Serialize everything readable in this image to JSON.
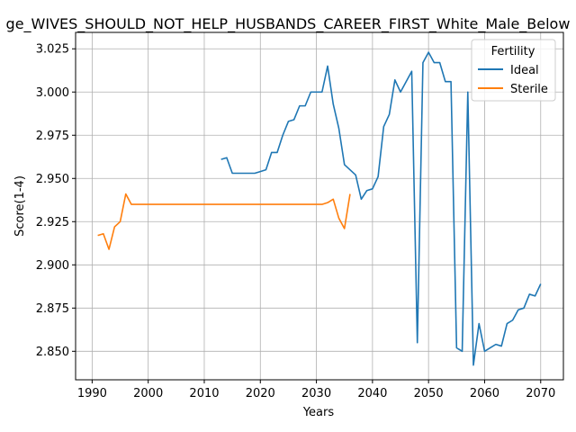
{
  "chart_data": {
    "type": "line",
    "title": "ge_WIVES_SHOULD_NOT_HELP_HUSBANDS_CAREER_FIRST_White_Male_Below",
    "xlabel": "Years",
    "ylabel": "Score(1-4)",
    "xlim": [
      1987.05,
      2074.05
    ],
    "ylim": [
      2.8335,
      3.0345
    ],
    "xticks": [
      1990,
      2000,
      2010,
      2020,
      2030,
      2040,
      2050,
      2060,
      2070
    ],
    "yticks": [
      2.85,
      2.875,
      2.9,
      2.925,
      2.95,
      2.975,
      3.0,
      3.025
    ],
    "grid": true,
    "legend": {
      "title": "Fertility",
      "placement": "top-right"
    },
    "series": [
      {
        "name": "Ideal",
        "color": "#1f77b4",
        "x": [
          2013,
          2014,
          2015,
          2016,
          2017,
          2018,
          2019,
          2020,
          2021,
          2022,
          2023,
          2024,
          2025,
          2026,
          2027,
          2028,
          2029,
          2030,
          2031,
          2032,
          2033,
          2034,
          2035,
          2036,
          2037,
          2038,
          2039,
          2040,
          2041,
          2042,
          2043,
          2044,
          2045,
          2046,
          2047,
          2048,
          2049,
          2050,
          2051,
          2052,
          2053,
          2054,
          2055,
          2056,
          2057,
          2058,
          2059,
          2060,
          2061,
          2062,
          2063,
          2064,
          2065,
          2066,
          2067,
          2068,
          2069,
          2070
        ],
        "y": [
          2.961,
          2.962,
          2.953,
          2.953,
          2.953,
          2.953,
          2.953,
          2.954,
          2.955,
          2.965,
          2.965,
          2.975,
          2.983,
          2.984,
          2.992,
          2.992,
          3.0,
          3.0,
          3.0,
          3.015,
          2.993,
          2.979,
          2.958,
          2.955,
          2.952,
          2.938,
          2.943,
          2.944,
          2.951,
          2.98,
          2.987,
          3.007,
          3.0,
          3.006,
          3.012,
          2.855,
          3.017,
          3.023,
          3.017,
          3.017,
          3.006,
          3.006,
          2.852,
          2.85,
          3.0,
          2.842,
          2.866,
          2.85,
          2.852,
          2.854,
          2.853,
          2.866,
          2.868,
          2.874,
          2.875,
          2.883,
          2.882,
          2.889
        ]
      },
      {
        "name": "Sterile",
        "color": "#ff7f0e",
        "x": [
          1991,
          1992,
          1993,
          1994,
          1995,
          1996,
          1997,
          1998,
          1999,
          2000,
          2001,
          2002,
          2003,
          2004,
          2005,
          2006,
          2007,
          2008,
          2009,
          2010,
          2011,
          2012,
          2013,
          2014,
          2015,
          2016,
          2017,
          2018,
          2019,
          2020,
          2021,
          2022,
          2023,
          2024,
          2025,
          2026,
          2027,
          2028,
          2029,
          2030,
          2031,
          2032,
          2033,
          2034,
          2035,
          2036
        ],
        "y": [
          2.917,
          2.918,
          2.909,
          2.922,
          2.925,
          2.941,
          2.935,
          2.935,
          2.935,
          2.935,
          2.935,
          2.935,
          2.935,
          2.935,
          2.935,
          2.935,
          2.935,
          2.935,
          2.935,
          2.935,
          2.935,
          2.935,
          2.935,
          2.935,
          2.935,
          2.935,
          2.935,
          2.935,
          2.935,
          2.935,
          2.935,
          2.935,
          2.935,
          2.935,
          2.935,
          2.935,
          2.935,
          2.935,
          2.935,
          2.935,
          2.935,
          2.936,
          2.938,
          2.927,
          2.921,
          2.941
        ]
      }
    ]
  }
}
